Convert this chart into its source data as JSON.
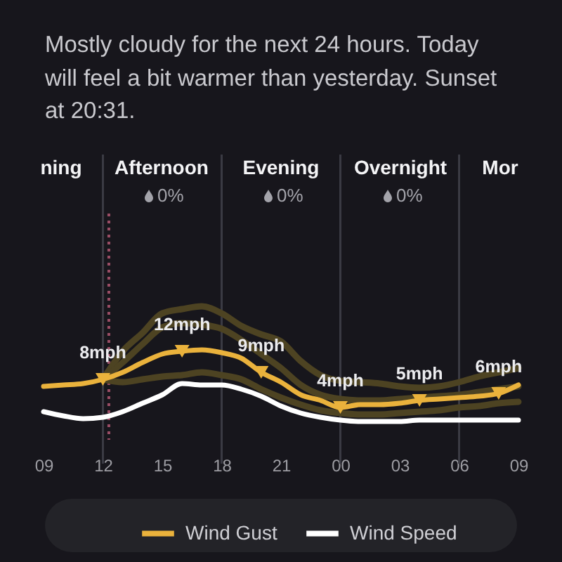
{
  "chart_data": {
    "type": "line",
    "title": "Mostly cloudy for the next 24 hours. Today will feel a bit warmer than yesterday. Sunset at 20:31.",
    "x": [
      9,
      10,
      11,
      12,
      13,
      14,
      15,
      16,
      17,
      18,
      19,
      20,
      21,
      22,
      23,
      24,
      25,
      26,
      27,
      28,
      29,
      30,
      31,
      32,
      33
    ],
    "xlim": [
      9,
      33
    ],
    "xticks": [
      {
        "value": 9,
        "label": "09"
      },
      {
        "value": 12,
        "label": "12"
      },
      {
        "value": 15,
        "label": "15"
      },
      {
        "value": 18,
        "label": "18"
      },
      {
        "value": 21,
        "label": "21"
      },
      {
        "value": 24,
        "label": "00"
      },
      {
        "value": 27,
        "label": "03"
      },
      {
        "value": 30,
        "label": "06"
      },
      {
        "value": 33,
        "label": "09"
      }
    ],
    "tick_labels": "x",
    "legend": "bottom",
    "ref_lines": [
      {
        "axis": "x",
        "value": 12.3,
        "color": "#9a4d65",
        "line_style": "dotted"
      },
      {
        "axis": "x",
        "value": 12,
        "color": "#3a3a43"
      },
      {
        "axis": "x",
        "value": 18,
        "color": "#3a3a43"
      },
      {
        "axis": "x",
        "value": 24,
        "color": "#3a3a43"
      },
      {
        "axis": "x",
        "value": 30,
        "color": "#3a3a43"
      }
    ],
    "annotations": [
      "ning",
      "Afternoon",
      "Evening",
      "Overnight",
      "Mor",
      "0%",
      "0%",
      "0%"
    ],
    "series": [
      {
        "color": "#4d4322",
        "x": [
          12,
          13,
          14,
          15,
          16,
          17,
          18,
          19,
          20,
          21,
          22,
          23,
          24,
          25,
          26,
          27,
          28,
          29,
          30,
          31,
          32,
          33
        ],
        "values": [
          8,
          12.0,
          14.6,
          17.4,
          18.0,
          18.4,
          17.4,
          15.6,
          14.4,
          13.4,
          10.6,
          8.6,
          7.8,
          7.6,
          7.4,
          7.0,
          6.8,
          7.0,
          7.6,
          8.4,
          9.0,
          9.6
        ]
      },
      {
        "color": "#4d4322",
        "x": [
          12,
          13,
          14,
          15,
          16,
          17,
          18,
          19,
          20,
          21,
          22,
          23,
          24,
          25,
          26,
          27,
          28,
          29,
          30,
          31,
          32,
          33
        ],
        "values": [
          8,
          10.4,
          13.0,
          15.4,
          16.0,
          15.8,
          15.2,
          13.6,
          11.6,
          9.6,
          7.2,
          5.8,
          5.2,
          5.0,
          5.0,
          5.2,
          5.4,
          5.6,
          5.8,
          6.2,
          6.6,
          7.0
        ]
      },
      {
        "color": "#4d4322",
        "x": [
          12,
          13,
          14,
          15,
          16,
          17,
          18,
          19,
          20,
          21,
          22,
          23,
          24,
          25,
          26,
          27,
          28,
          29,
          30,
          31,
          32,
          33
        ],
        "values": [
          8,
          7.6,
          8.0,
          8.4,
          8.6,
          9.0,
          8.6,
          8.0,
          6.6,
          5.4,
          4.4,
          3.6,
          3.2,
          3.0,
          3.0,
          3.2,
          3.4,
          3.6,
          4.0,
          4.2,
          4.6,
          4.8
        ]
      },
      {
        "name": "Wind Gust",
        "color": "#eab23c",
        "values": [
          7.0,
          7.2,
          7.4,
          8,
          9.0,
          10.4,
          11.6,
          12,
          12.2,
          11.8,
          11.0,
          9,
          7.6,
          5.8,
          5.0,
          4,
          4.4,
          4.4,
          4.6,
          5,
          5.2,
          5.4,
          5.6,
          6,
          7.2
        ]
      },
      {
        "name": "Wind Speed",
        "color": "#ffffff",
        "values": [
          3.4,
          2.8,
          2.4,
          2.6,
          3.4,
          4.6,
          5.8,
          7.4,
          7.2,
          7.2,
          6.6,
          5.6,
          4.2,
          3.2,
          2.6,
          2.2,
          2.0,
          2.0,
          2.0,
          2.2,
          2.2,
          2.2,
          2.2,
          2.2,
          2.2
        ]
      },
      {
        "type": "scatter",
        "marker": "triangle",
        "color": "#eab23c",
        "x": [
          12,
          16,
          20,
          24,
          28,
          32
        ],
        "values": [
          8,
          12,
          9,
          4,
          5,
          6
        ],
        "value_labels": [
          "8mph",
          "12mph",
          "9mph",
          "4mph",
          "5mph",
          "6mph"
        ]
      }
    ]
  }
}
